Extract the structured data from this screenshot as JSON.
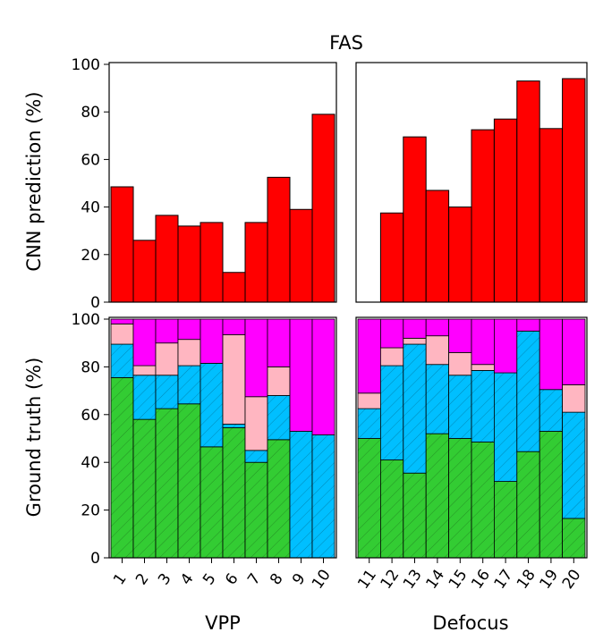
{
  "chart_data": {
    "type": "bar",
    "title": "FAS",
    "colors": {
      "prediction": "#ff0000",
      "green": "#33cc33",
      "blue": "#00bfff",
      "pink": "#ffb6c1",
      "magenta": "#ff00ff",
      "edge": "#000000"
    },
    "panels": {
      "top_ylabel": "CNN prediction (%)",
      "bottom_ylabel": "Ground truth (%)",
      "ylim": [
        0,
        100
      ],
      "yticks": [
        "0",
        "20",
        "40",
        "60",
        "80",
        "100"
      ]
    },
    "groups": [
      {
        "name": "VPP",
        "categories": [
          "1",
          "2",
          "3",
          "4",
          "5",
          "6",
          "7",
          "8",
          "9",
          "10"
        ],
        "prediction": [
          48.5,
          26,
          36.5,
          32,
          33.5,
          12.5,
          33.5,
          52.5,
          39,
          79
        ],
        "ground_truth": [
          [
            75.5,
            89.5,
            98,
            100
          ],
          [
            58,
            76.5,
            80.5,
            100
          ],
          [
            62.5,
            76.5,
            90,
            100
          ],
          [
            64.5,
            80.5,
            91.5,
            100
          ],
          [
            46.5,
            81.5,
            81.5,
            100
          ],
          [
            54.5,
            56,
            93.5,
            100
          ],
          [
            40,
            45,
            67.5,
            100
          ],
          [
            49.5,
            68,
            80,
            100
          ],
          [
            0,
            53,
            53,
            100
          ],
          [
            0,
            51.5,
            51.5,
            100
          ]
        ]
      },
      {
        "name": "Defocus",
        "categories": [
          "11",
          "12",
          "13",
          "14",
          "15",
          "16",
          "17",
          "18",
          "19",
          "20"
        ],
        "prediction": [
          0,
          37.5,
          69.5,
          47,
          40,
          72.5,
          77,
          93,
          73,
          94
        ],
        "ground_truth": [
          [
            50,
            62.5,
            69,
            100
          ],
          [
            41,
            80.5,
            88,
            100
          ],
          [
            35.5,
            89.5,
            92,
            100
          ],
          [
            52,
            81,
            93,
            100
          ],
          [
            50,
            76.5,
            86,
            100
          ],
          [
            48.5,
            78.5,
            81,
            100
          ],
          [
            32,
            77.5,
            77.5,
            100
          ],
          [
            44.5,
            95,
            95,
            100
          ],
          [
            53,
            70.5,
            70.5,
            100
          ],
          [
            16.5,
            61,
            72.5,
            100
          ]
        ]
      }
    ]
  }
}
